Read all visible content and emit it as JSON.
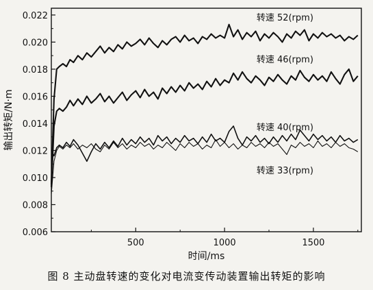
{
  "figure": {
    "caption": "图 8  主动盘转速的变化对电流变传动装置输出转矩的影响"
  },
  "chart_data": {
    "type": "line",
    "title": "",
    "xlabel": "时间/ms",
    "ylabel": "输出转矩/N·m",
    "xlim": [
      25,
      1770
    ],
    "ylim": [
      0.006,
      0.0225
    ],
    "x_ticks": [
      500,
      1000,
      1500
    ],
    "x_tick_labels": [
      "500",
      "1000",
      "1500"
    ],
    "y_ticks": [
      0.006,
      0.008,
      0.01,
      0.012,
      0.014,
      0.016,
      0.018,
      0.02,
      0.022
    ],
    "y_tick_labels": [
      "0.006",
      "0.008",
      "0.010",
      "0.012",
      "0.014",
      "0.016",
      "0.018",
      "0.020",
      "0.022"
    ],
    "grid": false,
    "line_color": "#111111",
    "series": [
      {
        "name": "转速 52(rpm)",
        "x": [
          25,
          40,
          55,
          70,
          90,
          110,
          130,
          150,
          175,
          200,
          225,
          250,
          275,
          300,
          325,
          350,
          375,
          400,
          425,
          450,
          475,
          500,
          525,
          550,
          575,
          600,
          625,
          650,
          675,
          700,
          725,
          750,
          775,
          800,
          825,
          850,
          875,
          900,
          925,
          950,
          975,
          1000,
          1025,
          1050,
          1075,
          1100,
          1125,
          1150,
          1175,
          1200,
          1225,
          1250,
          1275,
          1300,
          1325,
          1350,
          1375,
          1400,
          1425,
          1450,
          1475,
          1500,
          1525,
          1550,
          1575,
          1600,
          1625,
          1650,
          1675,
          1700,
          1725,
          1750
        ],
        "values": [
          0.0095,
          0.0158,
          0.018,
          0.0182,
          0.0184,
          0.0182,
          0.0187,
          0.0185,
          0.019,
          0.0187,
          0.0192,
          0.0189,
          0.0193,
          0.0197,
          0.0192,
          0.0196,
          0.0193,
          0.0198,
          0.0195,
          0.02,
          0.0197,
          0.0199,
          0.0202,
          0.0198,
          0.0203,
          0.0199,
          0.0196,
          0.0201,
          0.0198,
          0.0202,
          0.0204,
          0.02,
          0.0205,
          0.0201,
          0.0203,
          0.0199,
          0.0204,
          0.0202,
          0.0206,
          0.0203,
          0.0205,
          0.0203,
          0.0213,
          0.0204,
          0.0209,
          0.0202,
          0.0207,
          0.0204,
          0.0208,
          0.0201,
          0.0206,
          0.0203,
          0.0207,
          0.0204,
          0.02,
          0.0206,
          0.0203,
          0.0208,
          0.0205,
          0.0209,
          0.0201,
          0.0206,
          0.0203,
          0.0207,
          0.0204,
          0.0206,
          0.0203,
          0.0205,
          0.0201,
          0.0204,
          0.0202,
          0.0205
        ]
      },
      {
        "name": "转速 46(rpm)",
        "x": [
          25,
          40,
          55,
          70,
          90,
          110,
          130,
          150,
          175,
          200,
          225,
          250,
          275,
          300,
          325,
          350,
          375,
          400,
          425,
          450,
          475,
          500,
          525,
          550,
          575,
          600,
          625,
          650,
          675,
          700,
          725,
          750,
          775,
          800,
          825,
          850,
          875,
          900,
          925,
          950,
          975,
          1000,
          1025,
          1050,
          1075,
          1100,
          1125,
          1150,
          1175,
          1200,
          1225,
          1250,
          1275,
          1300,
          1325,
          1350,
          1375,
          1400,
          1425,
          1450,
          1475,
          1500,
          1525,
          1550,
          1575,
          1600,
          1625,
          1650,
          1675,
          1700,
          1725,
          1750
        ],
        "values": [
          0.0093,
          0.0138,
          0.0149,
          0.0151,
          0.0149,
          0.0152,
          0.0157,
          0.0153,
          0.0158,
          0.0154,
          0.016,
          0.0155,
          0.0158,
          0.0162,
          0.0156,
          0.016,
          0.0155,
          0.0159,
          0.0163,
          0.0157,
          0.0161,
          0.0164,
          0.0159,
          0.0165,
          0.016,
          0.0163,
          0.0158,
          0.0166,
          0.0162,
          0.0167,
          0.0163,
          0.0168,
          0.0164,
          0.017,
          0.0166,
          0.0169,
          0.0165,
          0.0171,
          0.0167,
          0.0173,
          0.0168,
          0.0172,
          0.017,
          0.0177,
          0.0172,
          0.0178,
          0.0173,
          0.017,
          0.0175,
          0.0172,
          0.0168,
          0.0174,
          0.0171,
          0.0176,
          0.0172,
          0.0169,
          0.0175,
          0.0172,
          0.0179,
          0.0174,
          0.0171,
          0.0176,
          0.0172,
          0.0175,
          0.0171,
          0.0178,
          0.0173,
          0.0169,
          0.0176,
          0.018,
          0.0171,
          0.0175
        ]
      },
      {
        "name": "转速 40(rpm)",
        "x": [
          25,
          40,
          55,
          70,
          90,
          110,
          130,
          150,
          175,
          200,
          225,
          250,
          275,
          300,
          325,
          350,
          375,
          400,
          425,
          450,
          475,
          500,
          525,
          550,
          575,
          600,
          625,
          650,
          675,
          700,
          725,
          750,
          775,
          800,
          825,
          850,
          875,
          900,
          925,
          950,
          975,
          1000,
          1025,
          1050,
          1075,
          1100,
          1125,
          1150,
          1175,
          1200,
          1225,
          1250,
          1275,
          1300,
          1325,
          1350,
          1375,
          1400,
          1425,
          1450,
          1475,
          1500,
          1525,
          1550,
          1575,
          1600,
          1625,
          1650,
          1675,
          1700,
          1725,
          1750
        ],
        "values": [
          0.012,
          0.0116,
          0.0122,
          0.0124,
          0.0122,
          0.0126,
          0.0123,
          0.0128,
          0.0124,
          0.0118,
          0.0112,
          0.0119,
          0.0125,
          0.0121,
          0.0126,
          0.0122,
          0.0127,
          0.0123,
          0.0129,
          0.0124,
          0.0128,
          0.0125,
          0.013,
          0.0126,
          0.0129,
          0.0124,
          0.0131,
          0.0127,
          0.013,
          0.0125,
          0.0129,
          0.0126,
          0.0131,
          0.0127,
          0.0129,
          0.0125,
          0.013,
          0.0126,
          0.0132,
          0.0127,
          0.0129,
          0.0126,
          0.0134,
          0.0138,
          0.0129,
          0.0124,
          0.013,
          0.0127,
          0.0131,
          0.0126,
          0.0129,
          0.0125,
          0.013,
          0.0126,
          0.0131,
          0.0127,
          0.0132,
          0.0128,
          0.0135,
          0.0131,
          0.0127,
          0.0132,
          0.0128,
          0.0131,
          0.0127,
          0.013,
          0.0126,
          0.0131,
          0.0127,
          0.0129,
          0.0126,
          0.0128
        ]
      },
      {
        "name": "转速 33(rpm)",
        "x": [
          25,
          40,
          55,
          70,
          90,
          110,
          130,
          150,
          175,
          200,
          225,
          250,
          275,
          300,
          325,
          350,
          375,
          400,
          425,
          450,
          475,
          500,
          525,
          550,
          575,
          600,
          625,
          650,
          675,
          700,
          725,
          750,
          775,
          800,
          825,
          850,
          875,
          900,
          925,
          950,
          975,
          1000,
          1025,
          1050,
          1075,
          1100,
          1125,
          1150,
          1175,
          1200,
          1225,
          1250,
          1275,
          1300,
          1325,
          1350,
          1375,
          1400,
          1425,
          1450,
          1475,
          1500,
          1525,
          1550,
          1575,
          1600,
          1625,
          1650,
          1675,
          1700,
          1725,
          1750
        ],
        "values": [
          0.0088,
          0.0112,
          0.012,
          0.0123,
          0.0121,
          0.0124,
          0.0122,
          0.0125,
          0.0121,
          0.0124,
          0.0122,
          0.0125,
          0.0121,
          0.0119,
          0.0124,
          0.0121,
          0.0126,
          0.0122,
          0.0125,
          0.0121,
          0.0124,
          0.0122,
          0.0126,
          0.0123,
          0.0125,
          0.0121,
          0.0124,
          0.0122,
          0.0126,
          0.0123,
          0.012,
          0.0125,
          0.0122,
          0.0126,
          0.0123,
          0.0125,
          0.0121,
          0.0124,
          0.0122,
          0.0128,
          0.0123,
          0.0126,
          0.0122,
          0.0125,
          0.0121,
          0.0124,
          0.0122,
          0.0126,
          0.0123,
          0.0125,
          0.0122,
          0.0126,
          0.0123,
          0.0125,
          0.0121,
          0.0117,
          0.0124,
          0.0122,
          0.0126,
          0.0123,
          0.0125,
          0.0122,
          0.0127,
          0.0123,
          0.0125,
          0.0122,
          0.0126,
          0.0123,
          0.0125,
          0.0122,
          0.0121,
          0.0119
        ]
      }
    ],
    "annotations": [
      {
        "series": 0,
        "label": "转速 52(rpm)",
        "at_x": 1340,
        "at_y": 0.0216
      },
      {
        "series": 1,
        "label": "转速 46(rpm)",
        "at_x": 1340,
        "at_y": 0.0185
      },
      {
        "series": 2,
        "label": "转速 40(rpm)",
        "at_x": 1340,
        "at_y": 0.0135
      },
      {
        "series": 3,
        "label": "转速 33(rpm)",
        "at_x": 1340,
        "at_y": 0.0103
      }
    ]
  }
}
